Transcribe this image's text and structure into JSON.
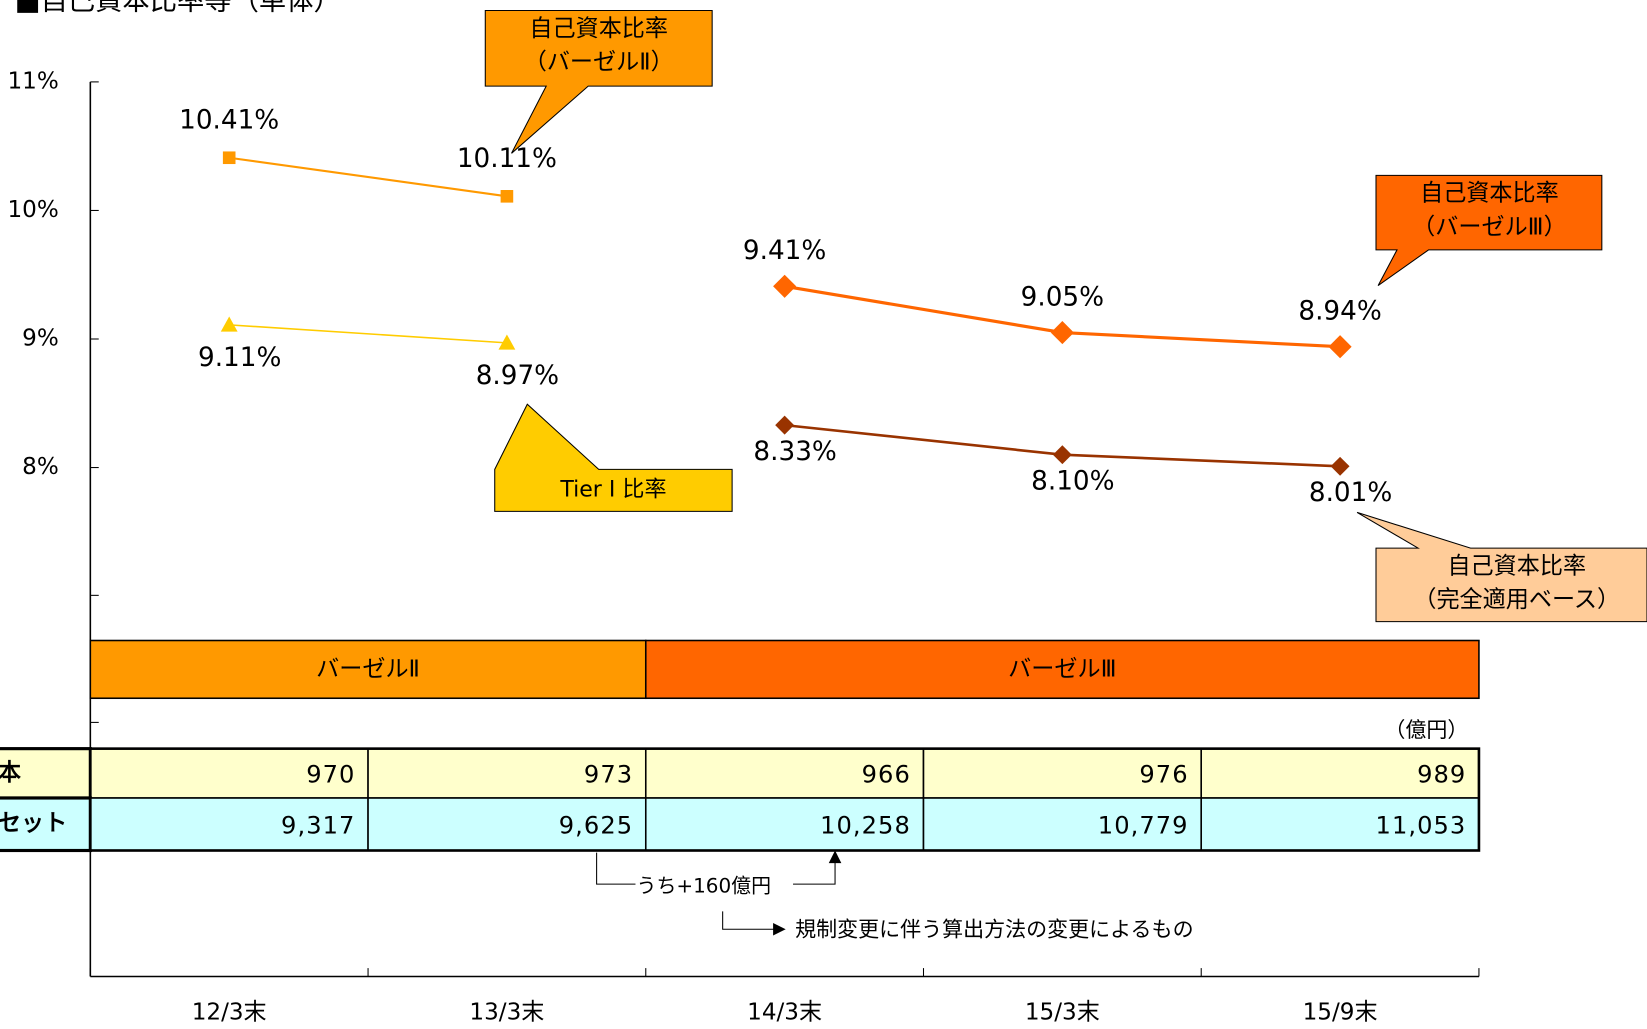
{
  "chart_data": {
    "type": "line",
    "title": "■自己資本比率等（単体）",
    "categories": [
      "12/3末",
      "13/3末",
      "14/3末",
      "15/3末",
      "15/9末"
    ],
    "ylim": [
      4,
      11
    ],
    "yticks": [
      {
        "value": 8,
        "label": "8%"
      },
      {
        "value": 9,
        "label": "9%"
      },
      {
        "value": 10,
        "label": "10%"
      },
      {
        "value": 11,
        "label": "11%"
      }
    ],
    "series": [
      {
        "label": [
          "自己資本比率",
          "（バーゼルⅡ）"
        ],
        "color": "#ff9900",
        "marker": "square",
        "values": [
          10.41,
          10.11,
          null,
          null,
          null
        ],
        "value_labels": [
          "10.41%",
          "10.11%",
          null,
          null,
          null
        ]
      },
      {
        "label": [
          "Tier Ⅰ 比率"
        ],
        "color": "#ffcc00",
        "marker": "triangle",
        "values": [
          9.11,
          8.97,
          null,
          null,
          null
        ],
        "value_labels": [
          "9.11%",
          "8.97%",
          null,
          null,
          null
        ]
      },
      {
        "label": [
          "自己資本比率",
          "（バーゼルⅢ）"
        ],
        "color": "#ff6600",
        "marker": "diamond",
        "values": [
          null,
          null,
          9.41,
          9.05,
          8.94
        ],
        "value_labels": [
          null,
          null,
          "9.41%",
          "9.05%",
          "8.94%"
        ]
      },
      {
        "label": [
          "自己資本比率",
          "（完全適用ベース）"
        ],
        "color": "#993300",
        "marker": "diamond",
        "values": [
          null,
          null,
          8.33,
          8.1,
          8.01
        ],
        "value_labels": [
          null,
          null,
          "8.33%",
          "8.10%",
          "8.01%"
        ]
      }
    ],
    "periods": [
      {
        "label": "バーゼルⅡ",
        "color": "#ff9900",
        "span": 2
      },
      {
        "label": "バーゼルⅢ",
        "color": "#ff6600",
        "span": 3
      }
    ],
    "table": {
      "unit": "（億円）",
      "rows": [
        {
          "header": "本",
          "color": "#ffffcc",
          "values": [
            970,
            973,
            966,
            976,
            989
          ]
        },
        {
          "header": "セット",
          "color": "#ccffff",
          "values": [
            9317,
            9625,
            10258,
            10779,
            11053
          ],
          "value_labels": [
            "9,317",
            "9,625",
            "10,258",
            "10,779",
            "11,053"
          ]
        }
      ]
    },
    "notes": [
      "うち+160億円",
      "規制変更に伴う算出方法の変更によるもの"
    ]
  }
}
